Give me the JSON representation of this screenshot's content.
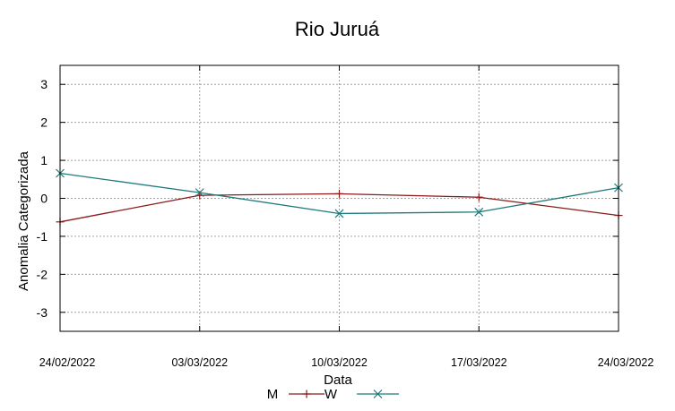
{
  "chart_data": {
    "type": "line",
    "title": "Rio Juruá",
    "xlabel": "Data",
    "ylabel": "Anomalia Categorizada",
    "x": [
      "24/02/2022",
      "03/03/2022",
      "10/03/2022",
      "17/03/2022",
      "24/03/2022"
    ],
    "yticks": [
      "3",
      "2",
      "1",
      "0",
      "-1",
      "-2",
      "-3"
    ],
    "ylim": [
      -3.5,
      3.5
    ],
    "grid": true,
    "legend_position": "bottom-center",
    "series": [
      {
        "name": "M",
        "color": "#8b1a1a",
        "marker": "plus",
        "values": [
          -0.62,
          0.08,
          0.12,
          0.03,
          -0.45
        ]
      },
      {
        "name": "W",
        "color": "#1f7a7a",
        "marker": "cross",
        "values": [
          0.66,
          0.15,
          -0.4,
          -0.36,
          0.28
        ]
      }
    ]
  }
}
